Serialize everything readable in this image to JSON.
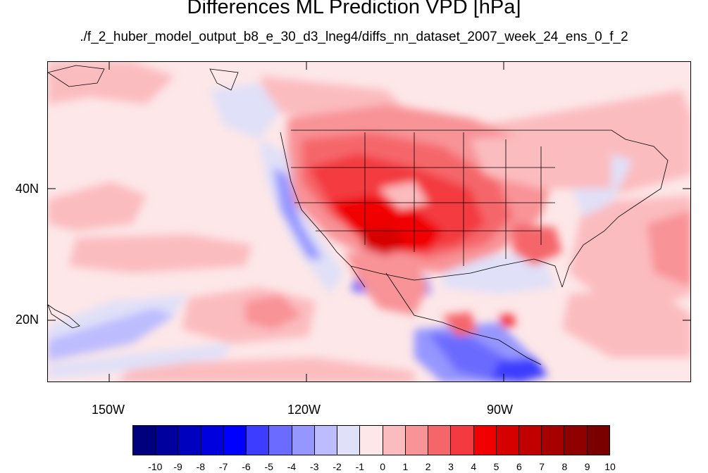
{
  "title": "Differences ML Prediction VPD [hPa]",
  "subtitle": "./f_2_huber_model_output_b8_e_30_d3_lneg4/diffs_nn_dataset_2007_week_24_ens_0_f_2",
  "map": {
    "lon_range": [
      -160,
      -62
    ],
    "lat_range": [
      10,
      59
    ],
    "lat_labels": [
      "40N",
      "20N"
    ],
    "lon_labels": [
      "150W",
      "120W",
      "90W"
    ],
    "feature_colors": {
      "coast": "#000000",
      "state_lines": "#000000"
    }
  },
  "colorbar": {
    "colors": [
      "#00007f",
      "#00009f",
      "#0000bf",
      "#0000df",
      "#0000ff",
      "#3d3dff",
      "#6b6bff",
      "#9696ff",
      "#bcbcff",
      "#e0e0f8",
      "#fde7e8",
      "#fbbcbf",
      "#f89397",
      "#f5666b",
      "#f33a40",
      "#f00000",
      "#d70000",
      "#c00000",
      "#a80000",
      "#910000",
      "#7a0000"
    ],
    "labels": [
      "-10",
      "-9",
      "-8",
      "-7",
      "-6",
      "-5",
      "-4",
      "-3",
      "-2",
      "-1",
      "0",
      "1",
      "2",
      "3",
      "4",
      "5",
      "6",
      "7",
      "8",
      "9",
      "10"
    ]
  }
}
